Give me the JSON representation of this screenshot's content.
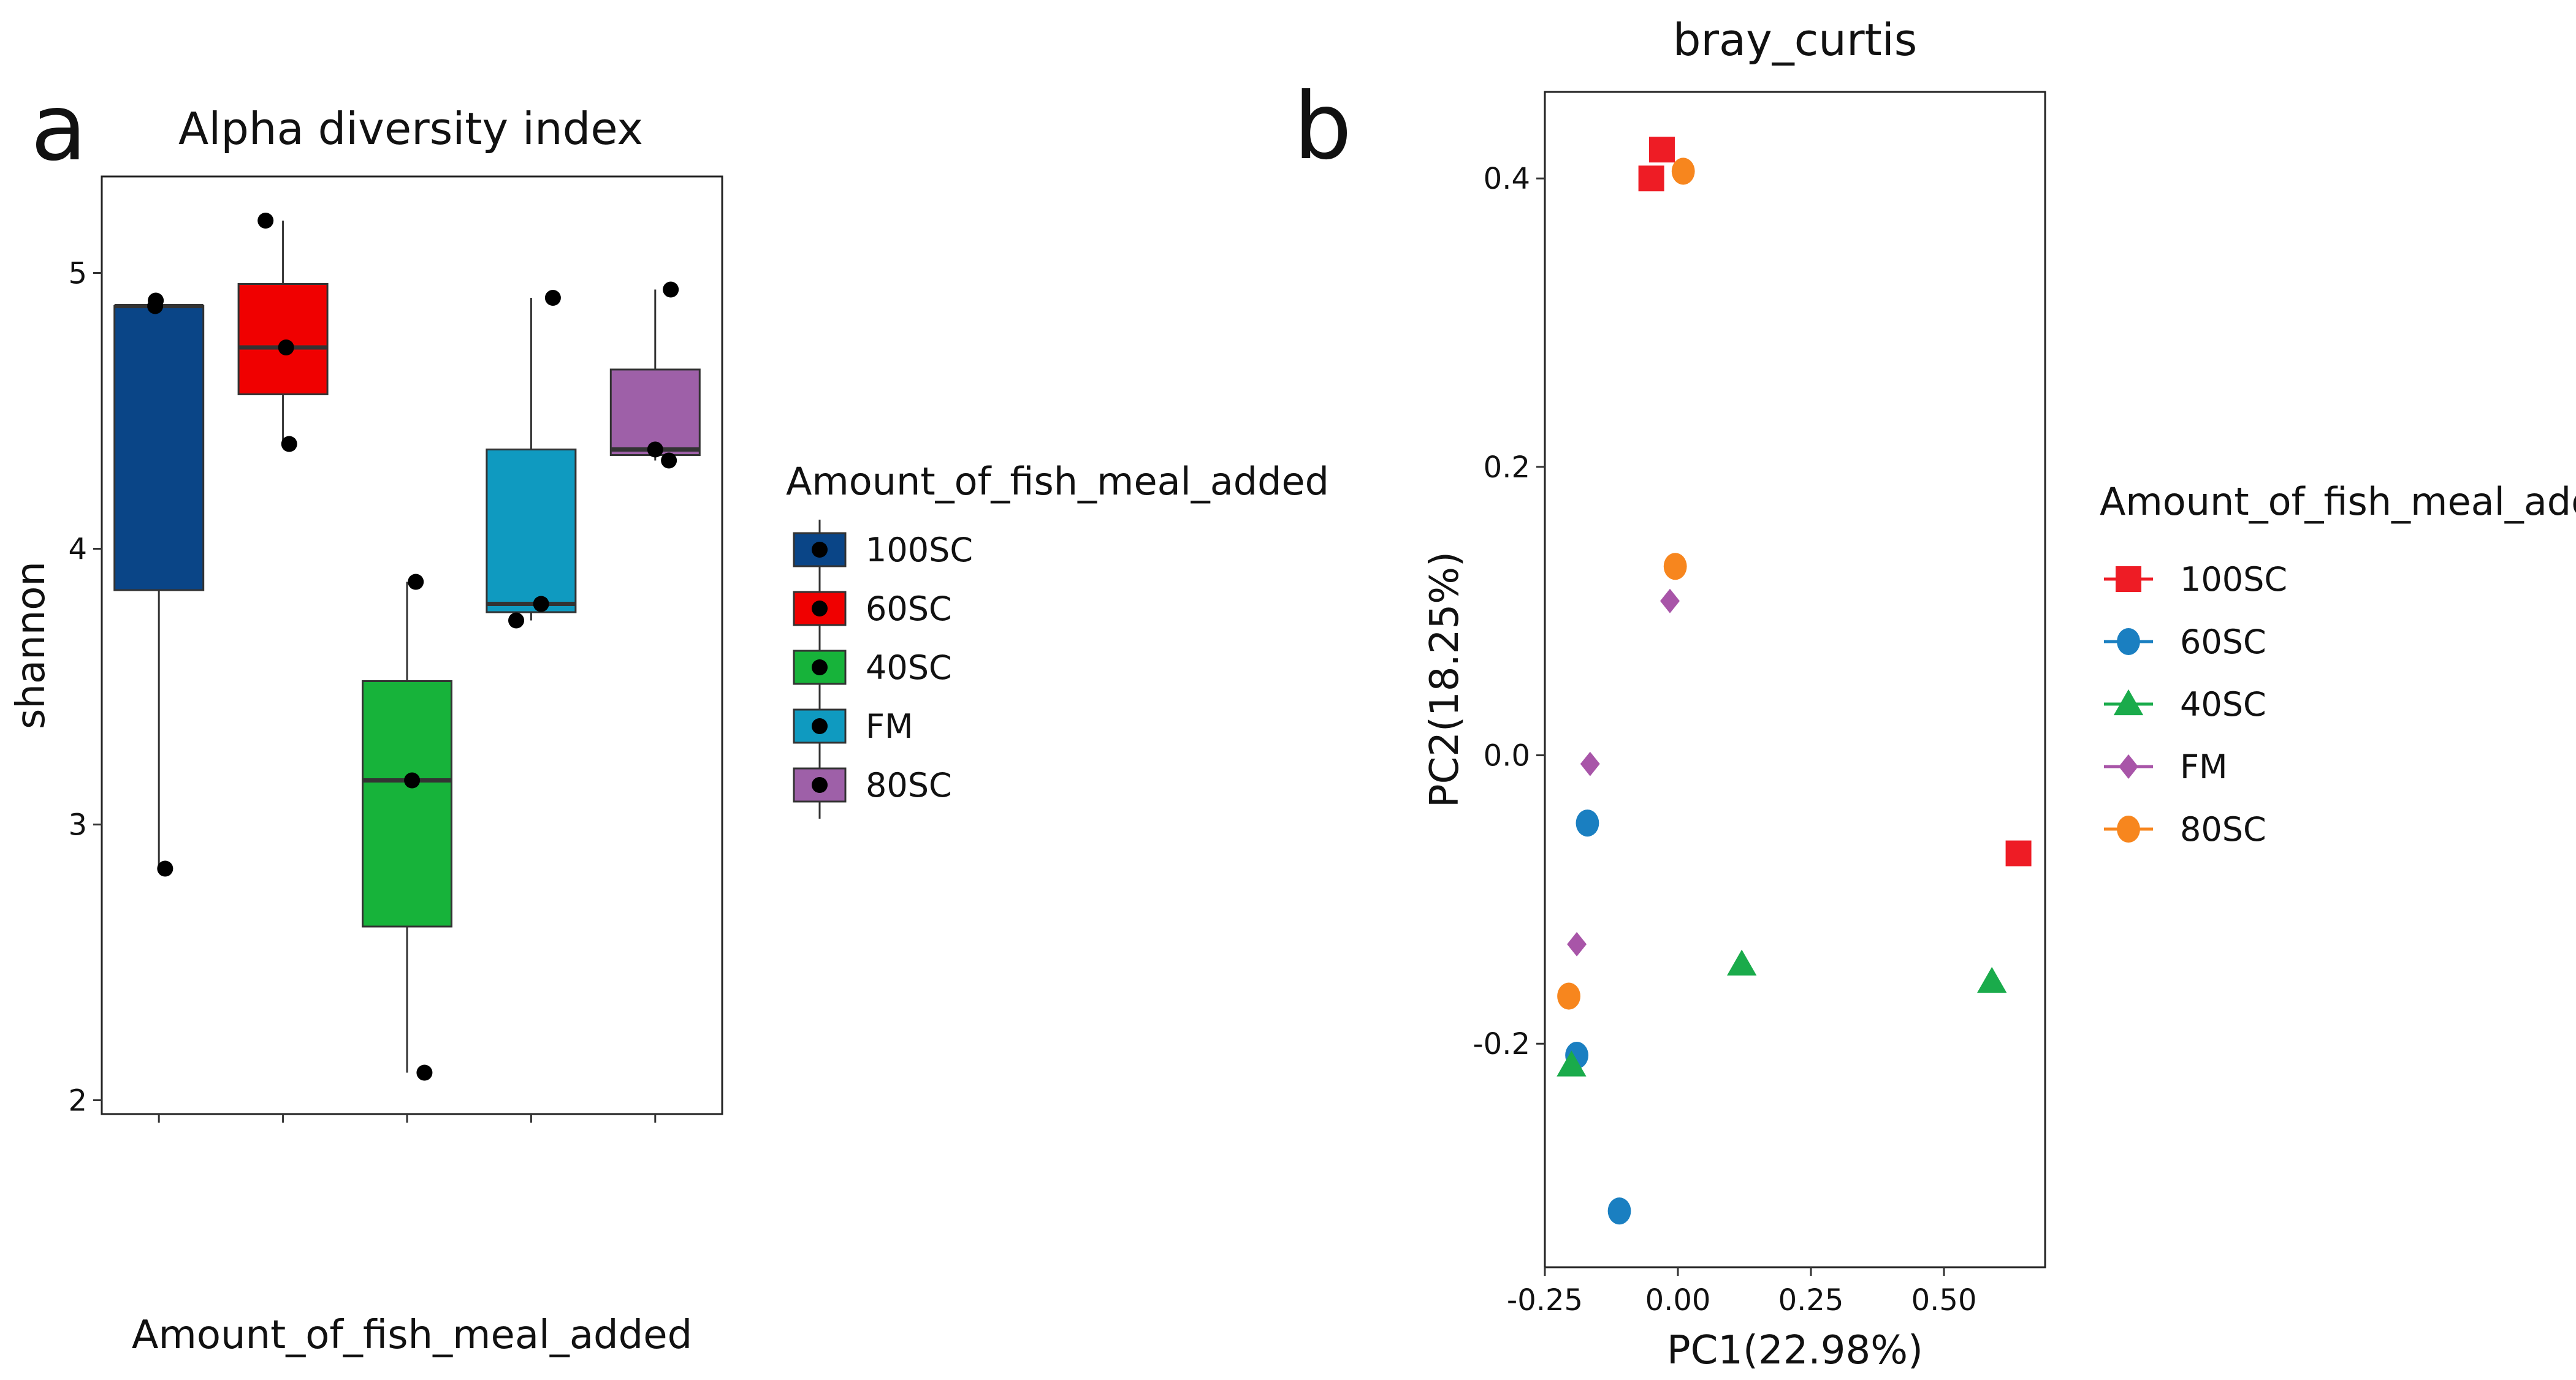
{
  "chart_data": [
    {
      "panel": "a",
      "type": "box",
      "title": "Alpha diversity index",
      "xlabel": "Amount_of_fish_meal_added",
      "ylabel": "shannon",
      "ylim": [
        1.95,
        5.35
      ],
      "yticks": [
        2,
        3,
        4,
        5
      ],
      "grid": false,
      "legend": {
        "title": "Amount_of_fish_meal_added",
        "position": "right",
        "labels": [
          "100SC",
          "60SC",
          "40SC",
          "FM",
          "80SC"
        ]
      },
      "groups": [
        {
          "name": "100SC",
          "color": "#0a4587",
          "min": 2.84,
          "q1": 3.85,
          "median": 4.88,
          "q3": 4.88,
          "max": 4.9,
          "points": [
            4.9,
            4.88,
            2.84
          ],
          "offsets": [
            -0.05,
            -0.06,
            0.1
          ]
        },
        {
          "name": "60SC",
          "color": "#f00000",
          "min": 4.38,
          "q1": 4.56,
          "median": 4.73,
          "q3": 4.96,
          "max": 5.19,
          "points": [
            5.19,
            4.73,
            4.38
          ],
          "offsets": [
            -0.28,
            0.05,
            0.1
          ]
        },
        {
          "name": "40SC",
          "color": "#17b33a",
          "min": 2.1,
          "q1": 2.63,
          "median": 3.16,
          "q3": 3.52,
          "max": 3.88,
          "points": [
            3.88,
            3.16,
            2.1
          ],
          "offsets": [
            0.14,
            0.08,
            0.28
          ]
        },
        {
          "name": "FM",
          "color": "#0f9ac0",
          "min": 3.74,
          "q1": 3.77,
          "median": 3.8,
          "q3": 4.36,
          "max": 4.91,
          "points": [
            4.91,
            3.8,
            3.74
          ],
          "offsets": [
            0.35,
            0.16,
            -0.24
          ]
        },
        {
          "name": "80SC",
          "color": "#9e60a8",
          "min": 4.32,
          "q1": 4.34,
          "median": 4.36,
          "q3": 4.65,
          "max": 4.94,
          "points": [
            4.94,
            4.36,
            4.32
          ],
          "offsets": [
            0.25,
            0,
            0.22
          ]
        }
      ]
    },
    {
      "panel": "b",
      "type": "scatter",
      "title": "bray_curtis",
      "xlabel": "PC1(22.98%)",
      "ylabel": "PC2(18.25%)",
      "xlim": [
        -0.25,
        0.69
      ],
      "ylim": [
        -0.355,
        0.46
      ],
      "xticks": [
        -0.25,
        0.0,
        0.25,
        0.5
      ],
      "xtick_labels": [
        "-0.25",
        "0.00",
        "0.25",
        "0.50"
      ],
      "yticks": [
        -0.2,
        0.0,
        0.2,
        0.4
      ],
      "ytick_labels": [
        "-0.2",
        "0.0",
        "0.2",
        "0.4"
      ],
      "grid": false,
      "legend": {
        "title": "Amount_of_fish_meal_added",
        "position": "right",
        "labels": [
          "100SC",
          "60SC",
          "40SC",
          "FM",
          "80SC"
        ]
      },
      "series": [
        {
          "name": "100SC",
          "marker": "square",
          "color": "#ee1c25",
          "points": [
            [
              -0.03,
              0.42
            ],
            [
              -0.05,
              0.4
            ],
            [
              0.64,
              -0.068
            ]
          ]
        },
        {
          "name": "60SC",
          "marker": "circle",
          "color": "#1a7fc1",
          "points": [
            [
              -0.17,
              -0.047
            ],
            [
              -0.19,
              -0.208
            ],
            [
              -0.11,
              -0.316
            ]
          ]
        },
        {
          "name": "40SC",
          "marker": "triangle",
          "color": "#1aab4b",
          "points": [
            [
              0.12,
              -0.145
            ],
            [
              0.59,
              -0.157
            ],
            [
              -0.2,
              -0.215
            ]
          ]
        },
        {
          "name": "FM",
          "marker": "diamond",
          "color": "#a855a8",
          "points": [
            [
              -0.015,
              0.107
            ],
            [
              -0.165,
              -0.006
            ],
            [
              -0.19,
              -0.131
            ]
          ]
        },
        {
          "name": "80SC",
          "marker": "circle",
          "color": "#f7861e",
          "points": [
            [
              0.01,
              0.405
            ],
            [
              -0.005,
              0.131
            ],
            [
              -0.205,
              -0.167
            ]
          ]
        }
      ]
    }
  ]
}
